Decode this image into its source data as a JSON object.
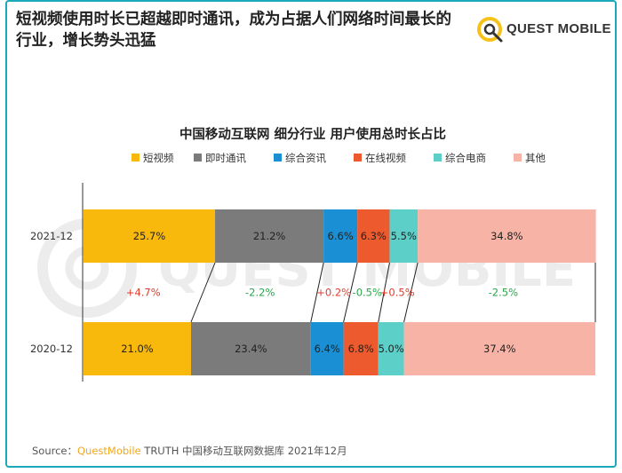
{
  "headline": "短视频使用时长已超越即时通讯，成为占据人们网络时间最长的行业，增长势头迅猛",
  "logo": {
    "text": "QUEST MOBILE"
  },
  "watermark": "QUEST MOBILE",
  "source": {
    "prefix": "Source：",
    "brand": "QuestMobile",
    "rest": " TRUTH 中国移动互联网数据库 2021年12月"
  },
  "colors": {
    "短视频": "#f8b80c",
    "即时通讯": "#7b7b7b",
    "综合资讯": "#1a8fd3",
    "在线视频": "#ec5a2d",
    "综合电商": "#5dcfc9",
    "其他": "#f7b4a6",
    "positive_change": "#e03c2c",
    "negative_change": "#2aa84a"
  },
  "chart_data": {
    "type": "bar",
    "orientation": "horizontal",
    "stacked": true,
    "title": "中国移动互联网 细分行业 用户使用总时长占比",
    "legend_position": "top",
    "categories": [
      "2021-12",
      "2020-12"
    ],
    "series": [
      {
        "name": "短视频",
        "values": [
          25.7,
          21.0
        ],
        "labels": [
          "25.7%",
          "21.0%"
        ]
      },
      {
        "name": "即时通讯",
        "values": [
          21.2,
          23.4
        ],
        "labels": [
          "21.2%",
          "23.4%"
        ]
      },
      {
        "name": "综合资讯",
        "values": [
          6.6,
          6.4
        ],
        "labels": [
          "6.6%",
          "6.4%"
        ]
      },
      {
        "name": "在线视频",
        "values": [
          6.3,
          6.8
        ],
        "labels": [
          "6.3%",
          "6.8%"
        ]
      },
      {
        "name": "综合电商",
        "values": [
          5.5,
          5.0
        ],
        "labels": [
          "5.5%",
          "5.0%"
        ]
      },
      {
        "name": "其他",
        "values": [
          34.8,
          37.4
        ],
        "labels": [
          "34.8%",
          "37.4%"
        ]
      }
    ],
    "changes": [
      "+4.7%",
      "-2.2%",
      "+0.2%",
      "-0.5%",
      "+0.5%",
      "-2.5%"
    ],
    "xlim": [
      0,
      100
    ]
  }
}
